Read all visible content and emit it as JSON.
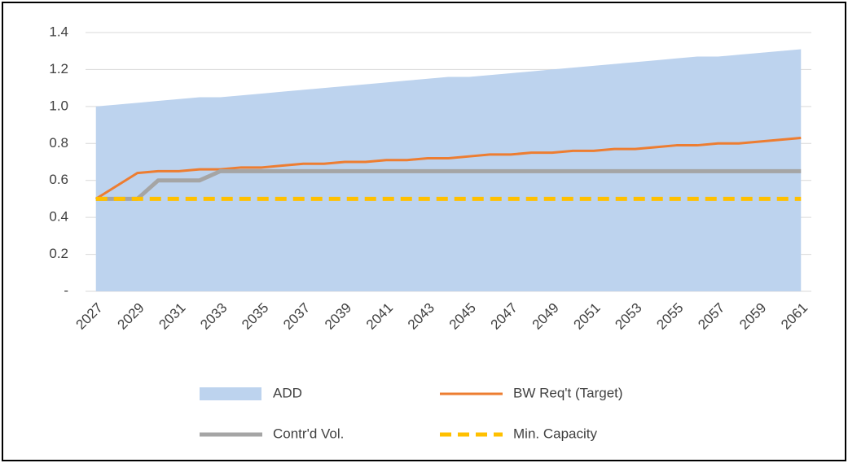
{
  "chart_data": {
    "type": "line",
    "categories": [
      "2027",
      null,
      "2029",
      null,
      "2031",
      null,
      "2033",
      null,
      "2035",
      null,
      "2037",
      null,
      "2039",
      null,
      "2041",
      null,
      "2043",
      null,
      "2045",
      null,
      "2047",
      null,
      "2049",
      null,
      "2051",
      null,
      "2053",
      null,
      "2055",
      null,
      "2057",
      null,
      "2059",
      null,
      "2061"
    ],
    "series": [
      {
        "name": "ADD",
        "kind": "area",
        "color": "#bdd3ee",
        "values": [
          1.0,
          1.01,
          1.02,
          1.03,
          1.04,
          1.05,
          1.05,
          1.06,
          1.07,
          1.08,
          1.09,
          1.1,
          1.11,
          1.12,
          1.13,
          1.14,
          1.15,
          1.16,
          1.16,
          1.17,
          1.18,
          1.19,
          1.2,
          1.21,
          1.22,
          1.23,
          1.24,
          1.25,
          1.26,
          1.27,
          1.27,
          1.28,
          1.29,
          1.3,
          1.31
        ]
      },
      {
        "name": "BW Req't (Target)",
        "kind": "line",
        "color": "#ed7d31",
        "values": [
          0.5,
          0.57,
          0.64,
          0.65,
          0.65,
          0.66,
          0.66,
          0.67,
          0.67,
          0.68,
          0.69,
          0.69,
          0.7,
          0.7,
          0.71,
          0.71,
          0.72,
          0.72,
          0.73,
          0.74,
          0.74,
          0.75,
          0.75,
          0.76,
          0.76,
          0.77,
          0.77,
          0.78,
          0.79,
          0.79,
          0.8,
          0.8,
          0.81,
          0.82,
          0.83
        ]
      },
      {
        "name": "Contr'd Vol.",
        "kind": "line",
        "color": "#a5a5a5",
        "values": [
          0.5,
          0.5,
          0.5,
          0.6,
          0.6,
          0.6,
          0.65,
          0.65,
          0.65,
          0.65,
          0.65,
          0.65,
          0.65,
          0.65,
          0.65,
          0.65,
          0.65,
          0.65,
          0.65,
          0.65,
          0.65,
          0.65,
          0.65,
          0.65,
          0.65,
          0.65,
          0.65,
          0.65,
          0.65,
          0.65,
          0.65,
          0.65,
          0.65,
          0.65,
          0.65
        ]
      },
      {
        "name": "Min. Capacity",
        "kind": "dashed",
        "color": "#ffc000",
        "values": [
          0.5,
          0.5,
          0.5,
          0.5,
          0.5,
          0.5,
          0.5,
          0.5,
          0.5,
          0.5,
          0.5,
          0.5,
          0.5,
          0.5,
          0.5,
          0.5,
          0.5,
          0.5,
          0.5,
          0.5,
          0.5,
          0.5,
          0.5,
          0.5,
          0.5,
          0.5,
          0.5,
          0.5,
          0.5,
          0.5,
          0.5,
          0.5,
          0.5,
          0.5,
          0.5
        ]
      }
    ],
    "ylim": [
      0,
      1.4
    ],
    "yticks": [
      {
        "value": 0,
        "label": "-"
      },
      0.2,
      0.4,
      0.6,
      0.8,
      {
        "value": 1.0,
        "label": "1.0"
      },
      1.2,
      1.4
    ],
    "grid": true,
    "legend": "bottom"
  }
}
